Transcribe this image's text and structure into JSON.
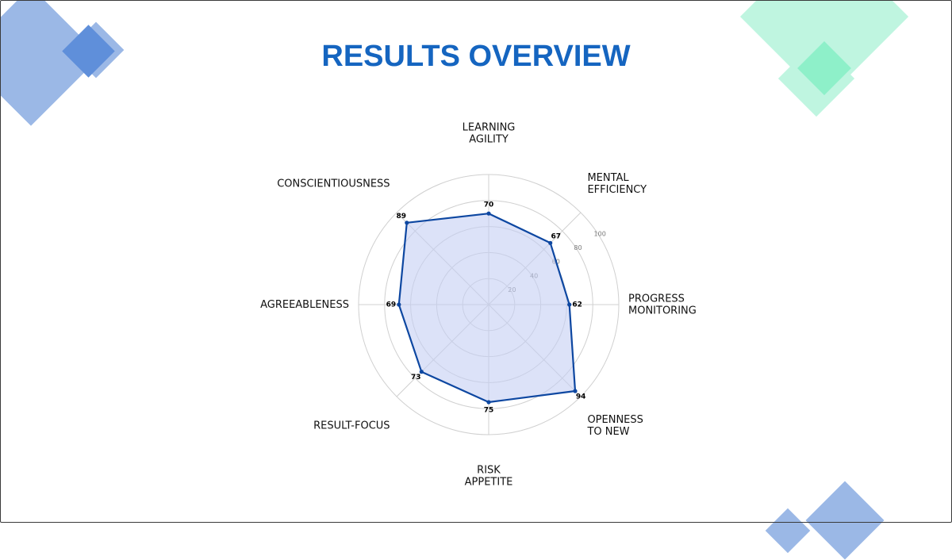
{
  "page": {
    "title": "RESULTS OVERVIEW"
  },
  "colors": {
    "title": "#1565c0",
    "series_line": "#0d47a1",
    "series_fill": "#c5cef3",
    "grid": "#d0d0d0",
    "deco_blue": "#9bb8e6",
    "deco_blue_dark": "#5f8fda",
    "deco_green": "#bff5e0",
    "deco_green_dark": "#8ef0c9"
  },
  "chart_data": {
    "type": "radar",
    "title": "",
    "categories": [
      "LEARNING\nAGILITY",
      "MENTAL\nEFFICIENCY",
      "PROGRESS\nMONITORING",
      "OPENNESS\nTO NEW",
      "RISK\nAPPETITE",
      "RESULT-FOCUS",
      "AGREEABLENESS",
      "CONSCIENTIOUSNESS"
    ],
    "series": [
      {
        "values": [
          70,
          67,
          62,
          94,
          75,
          73,
          69,
          89
        ]
      }
    ],
    "r_range": [
      0,
      100
    ],
    "r_ticks": [
      20,
      40,
      60,
      80,
      100
    ],
    "grid": true,
    "legend": "none"
  }
}
